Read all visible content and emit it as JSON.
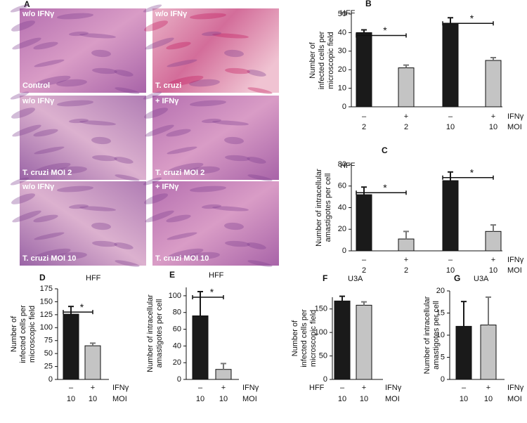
{
  "panel_a": {
    "letter": "A",
    "images": [
      {
        "top": "w/o IFNγ",
        "bottom": "Control"
      },
      {
        "top": "w/o IFNγ",
        "bottom": "T. cruzi"
      },
      {
        "top": "w/o IFNγ",
        "bottom": "T. cruzi MOI 2"
      },
      {
        "top": "+ IFNγ",
        "bottom": "T. cruzi MOI 2"
      },
      {
        "top": "w/o IFNγ",
        "bottom": "T. cruzi MOI 10"
      },
      {
        "top": "+ IFNγ",
        "bottom": "T. cruzi MOI 10"
      }
    ]
  },
  "chart_data": [
    {
      "type": "bar",
      "panel": "B",
      "title": "HFF",
      "ylabel": [
        "Number of",
        "infected cells per",
        "microscopic field"
      ],
      "categories": [
        "2",
        "2",
        "10",
        "10"
      ],
      "ifn": [
        "–",
        "+",
        "–",
        "+"
      ],
      "row_labels": [
        "IFNγ",
        "MOI"
      ],
      "values": [
        40,
        21,
        45,
        25
      ],
      "errors": [
        1.5,
        1.5,
        3,
        1.5
      ],
      "colors": [
        "#1a1a1a",
        "#c4c4c4",
        "#1a1a1a",
        "#c4c4c4"
      ],
      "ylim": [
        0,
        50
      ],
      "yticks": [
        0,
        10,
        20,
        30,
        40,
        50
      ],
      "significance": [
        {
          "from": 0,
          "to": 1,
          "label": "*"
        },
        {
          "from": 2,
          "to": 3,
          "label": "*"
        }
      ]
    },
    {
      "type": "bar",
      "panel": "C",
      "title": "HFF",
      "ylabel": [
        "Number of intracellular",
        "amastigotes per cell"
      ],
      "categories": [
        "2",
        "2",
        "10",
        "10"
      ],
      "ifn": [
        "–",
        "+",
        "–",
        "+"
      ],
      "row_labels": [
        "IFNγ",
        "MOI"
      ],
      "values": [
        52,
        11,
        65,
        18
      ],
      "errors": [
        7,
        7,
        8,
        6
      ],
      "colors": [
        "#1a1a1a",
        "#c4c4c4",
        "#1a1a1a",
        "#c4c4c4"
      ],
      "ylim": [
        0,
        80
      ],
      "yticks": [
        0,
        20,
        40,
        60,
        80
      ],
      "significance": [
        {
          "from": 0,
          "to": 1,
          "label": "*"
        },
        {
          "from": 2,
          "to": 3,
          "label": "*"
        }
      ]
    },
    {
      "type": "bar",
      "panel": "D",
      "title": "HFF",
      "ylabel": [
        "Number of",
        "infected cells per",
        "microscopic field"
      ],
      "categories": [
        "10",
        "10"
      ],
      "ifn": [
        "–",
        "+"
      ],
      "row_labels": [
        "IFNγ",
        "MOI"
      ],
      "values": [
        126,
        65
      ],
      "errors": [
        15,
        5
      ],
      "colors": [
        "#1a1a1a",
        "#c4c4c4"
      ],
      "ylim": [
        0,
        175
      ],
      "yticks": [
        0,
        25,
        50,
        75,
        100,
        125,
        150,
        175
      ],
      "significance": [
        {
          "from": 0,
          "to": 1,
          "label": "*"
        }
      ]
    },
    {
      "type": "bar",
      "panel": "E",
      "title": "HFF",
      "ylabel": [
        "Number of intracellular",
        "amastigotes per cell"
      ],
      "categories": [
        "10",
        "10"
      ],
      "ifn": [
        "–",
        "+"
      ],
      "row_labels": [
        "IFNγ",
        "MOI"
      ],
      "values": [
        76,
        12
      ],
      "errors": [
        29,
        7
      ],
      "colors": [
        "#1a1a1a",
        "#c4c4c4"
      ],
      "ylim": [
        0,
        110
      ],
      "yticks": [
        0,
        20,
        40,
        60,
        80,
        100
      ],
      "significance": [
        {
          "from": 0,
          "to": 1,
          "label": "*"
        }
      ]
    },
    {
      "type": "bar",
      "panel": "F",
      "title": "U3A",
      "ylabel": [
        "Number of",
        "infected cells per",
        "microscopic field"
      ],
      "row_prefix": "HFF",
      "categories": [
        "10",
        "10"
      ],
      "ifn": [
        "–",
        "+"
      ],
      "row_labels": [
        "IFNγ",
        "MOI"
      ],
      "values": [
        167,
        158
      ],
      "errors": [
        10,
        7
      ],
      "colors": [
        "#1a1a1a",
        "#c4c4c4"
      ],
      "ylim": [
        0,
        175
      ],
      "yticks": [
        0,
        50,
        100,
        150
      ]
    },
    {
      "type": "bar",
      "panel": "G",
      "title": "U3A",
      "ylabel": [
        "Number of intracellular",
        "amastigotes per cell"
      ],
      "categories": [
        "10",
        "10"
      ],
      "ifn": [
        "–",
        "+"
      ],
      "row_labels": [
        "IFNγ",
        "MOI"
      ],
      "values": [
        12,
        12.3
      ],
      "errors": [
        5.6,
        6.3
      ],
      "colors": [
        "#1a1a1a",
        "#c4c4c4"
      ],
      "ylim": [
        0,
        20
      ],
      "yticks": [
        0,
        5,
        10,
        15,
        20
      ]
    }
  ]
}
